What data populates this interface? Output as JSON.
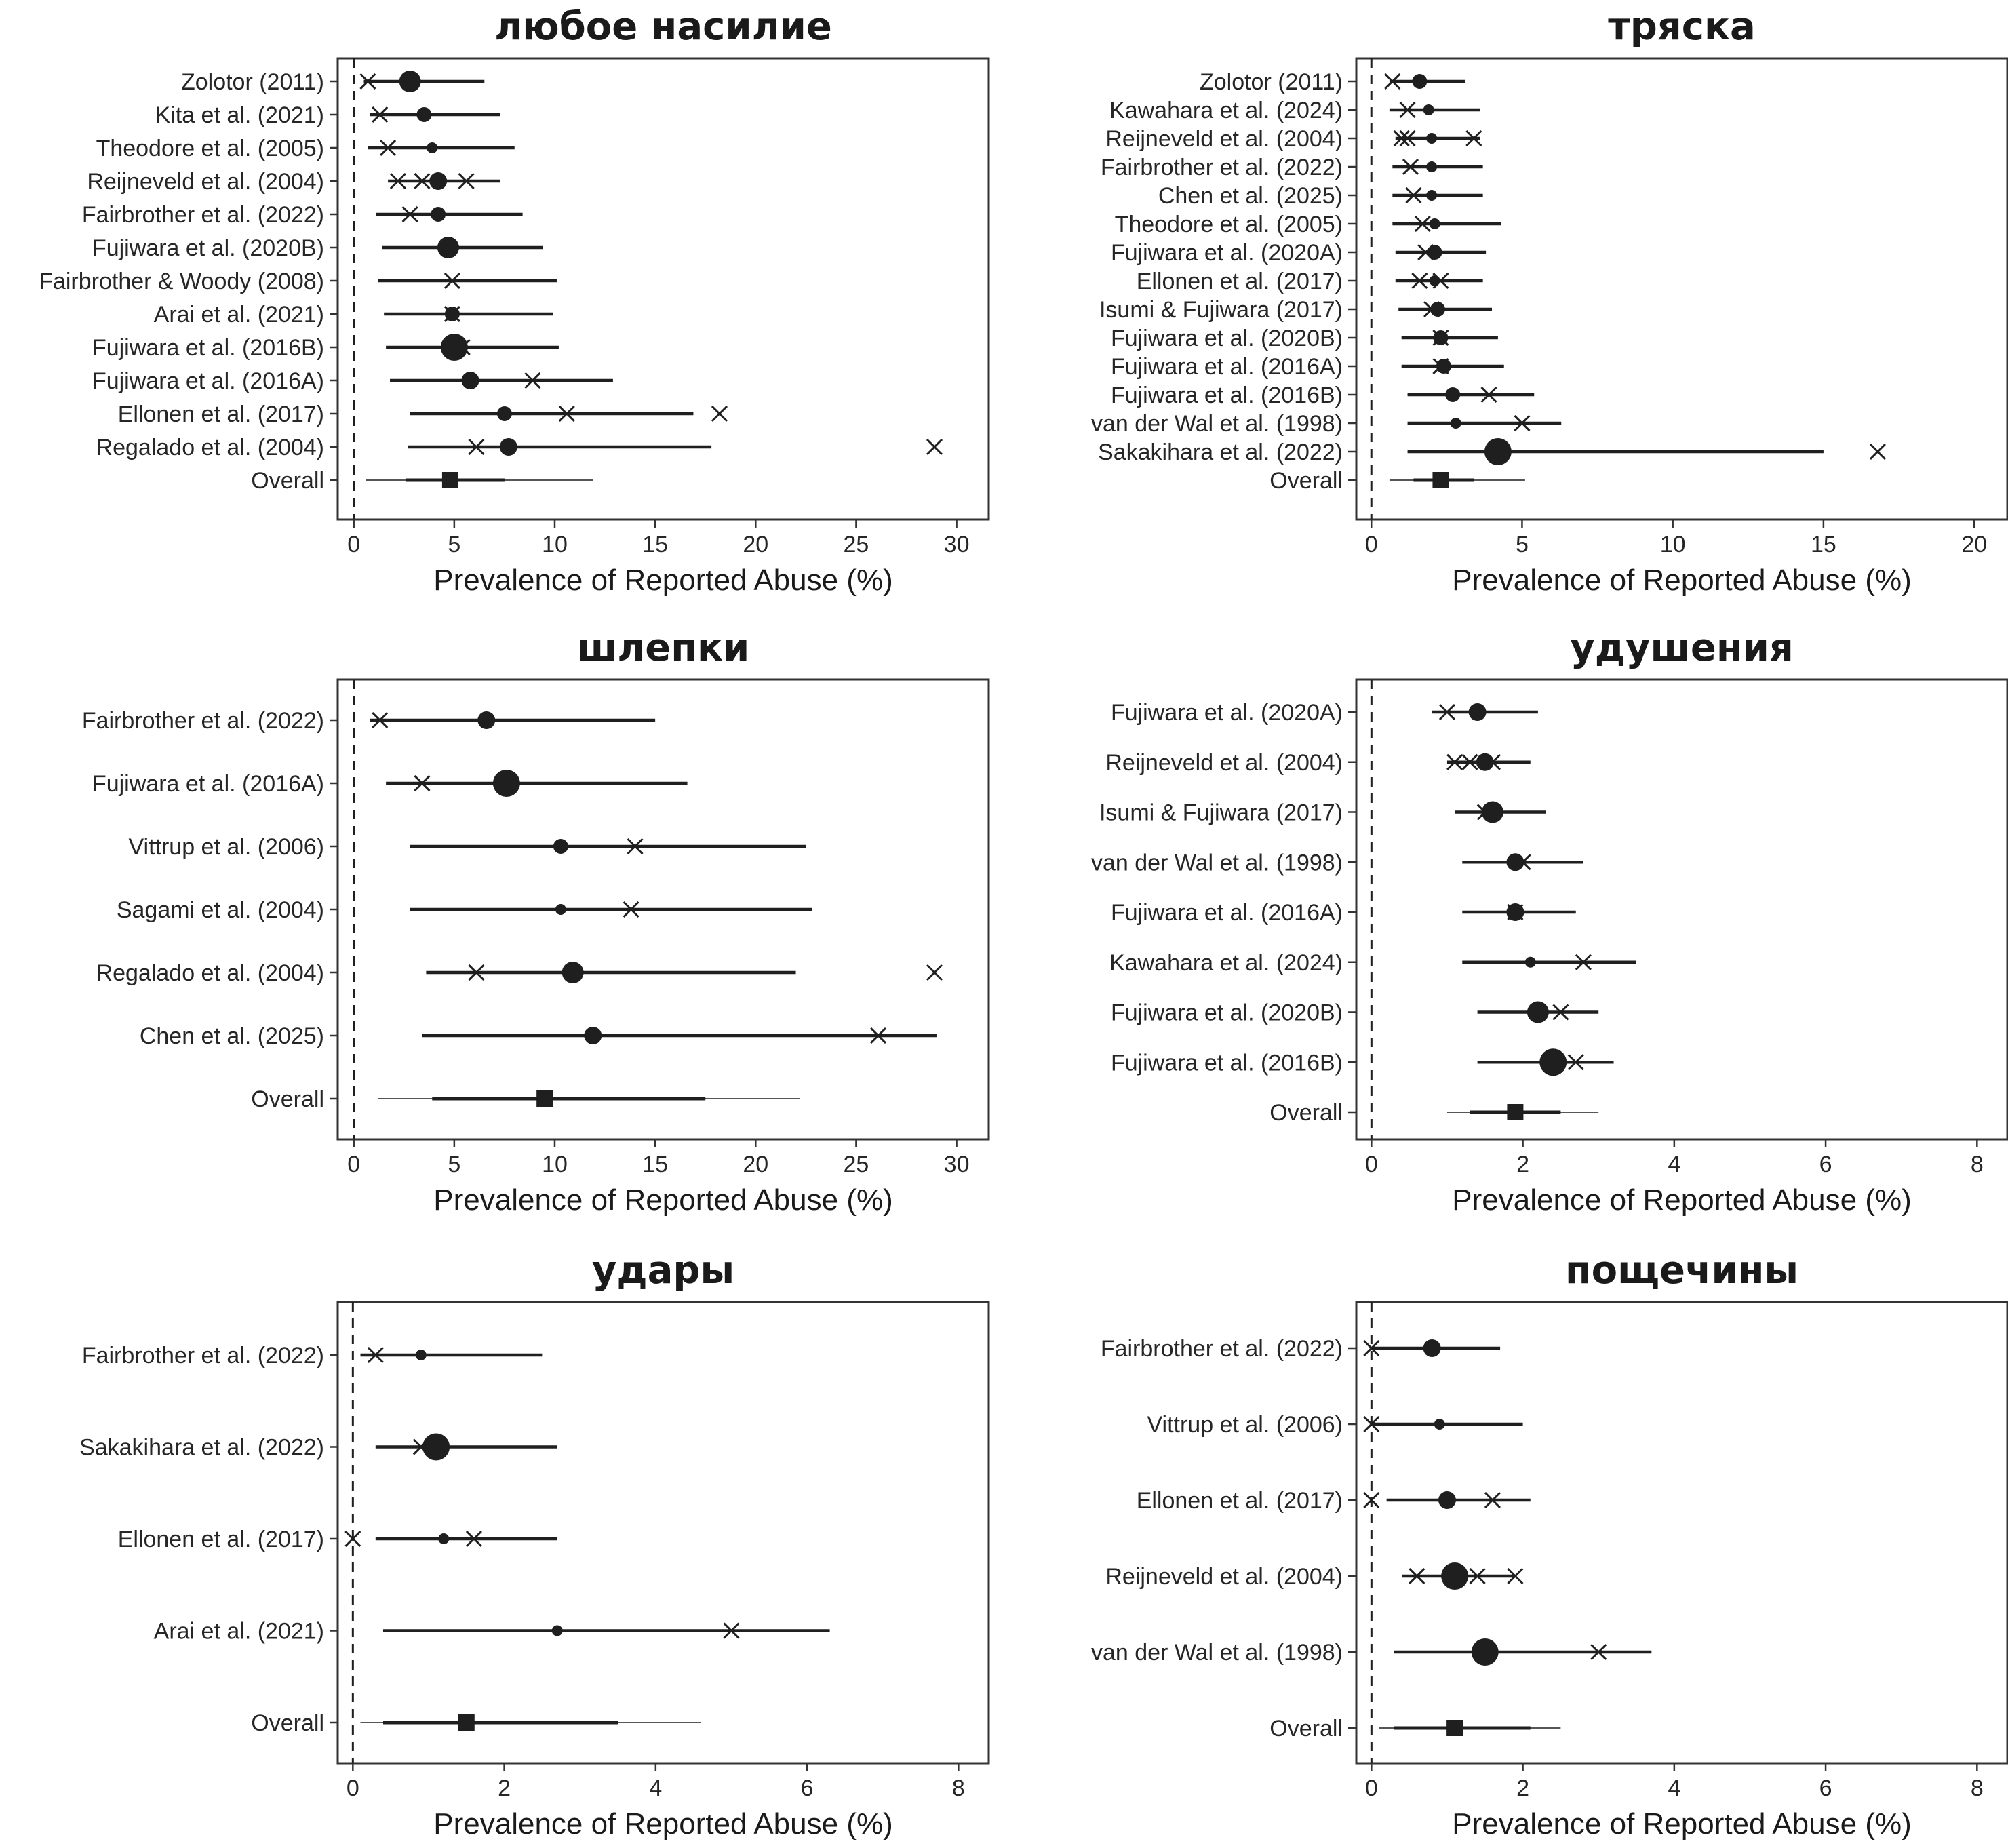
{
  "chart_data": [
    {
      "type": "forest",
      "title": "любое насилие",
      "xlabel": "Prevalence of Reported Abuse (%)",
      "xlim": [
        -0.8,
        31.6
      ],
      "xticks": [
        0,
        5,
        10,
        15,
        20,
        25,
        30
      ],
      "reference_line": 0,
      "studies": [
        {
          "label": "Zolotor (2011)",
          "estimate": 2.8,
          "lower": 0.5,
          "upper": 6.5,
          "weight": "large",
          "cross": [
            0.7
          ]
        },
        {
          "label": "Kita et al. (2021)",
          "estimate": 3.5,
          "lower": 0.8,
          "upper": 7.3,
          "weight": "small",
          "cross": [
            1.3
          ]
        },
        {
          "label": "Theodore et al. (2005)",
          "estimate": 3.9,
          "lower": 0.7,
          "upper": 8.0,
          "weight": "tiny",
          "cross": [
            1.7
          ]
        },
        {
          "label": "Reijneveld et al. (2004)",
          "estimate": 4.2,
          "lower": 1.7,
          "upper": 7.3,
          "weight": "medium",
          "cross": [
            2.2,
            3.4,
            5.6
          ]
        },
        {
          "label": "Fairbrother et al. (2022)",
          "estimate": 4.2,
          "lower": 1.1,
          "upper": 8.4,
          "weight": "small",
          "cross": [
            2.8
          ]
        },
        {
          "label": "Fujiwara et al. (2020B)",
          "estimate": 4.7,
          "lower": 1.4,
          "upper": 9.4,
          "weight": "large",
          "cross": [
            4.7
          ]
        },
        {
          "label": "Fairbrother & Woody (2008)",
          "estimate": 4.9,
          "lower": 1.2,
          "upper": 10.1,
          "weight": "none",
          "cross": [
            4.9
          ]
        },
        {
          "label": "Arai et al. (2021)",
          "estimate": 4.9,
          "lower": 1.5,
          "upper": 9.9,
          "weight": "small",
          "cross": [
            4.9
          ]
        },
        {
          "label": "Fujiwara et al. (2016B)",
          "estimate": 5.0,
          "lower": 1.6,
          "upper": 10.2,
          "weight": "xlarge",
          "cross": [
            5.4
          ]
        },
        {
          "label": "Fujiwara et al. (2016A)",
          "estimate": 5.8,
          "lower": 1.8,
          "upper": 12.9,
          "weight": "medium",
          "cross": [
            8.9
          ]
        },
        {
          "label": "Ellonen et al. (2017)",
          "estimate": 7.5,
          "lower": 2.8,
          "upper": 16.9,
          "weight": "small",
          "cross": [
            10.6,
            18.2
          ]
        },
        {
          "label": "Regalado et al. (2004)",
          "estimate": 7.7,
          "lower": 2.7,
          "upper": 17.8,
          "weight": "medium",
          "cross": [
            6.1,
            28.9
          ]
        }
      ],
      "overall": {
        "label": "Overall",
        "estimate": 4.8,
        "ci_lower": 2.6,
        "ci_upper": 7.5,
        "pi_lower": 0.6,
        "pi_upper": 11.9
      }
    },
    {
      "type": "forest",
      "title": "тряска",
      "xlabel": "Prevalence of Reported Abuse (%)",
      "xlim": [
        -0.5,
        21.1
      ],
      "xticks": [
        0,
        5,
        10,
        15,
        20
      ],
      "reference_line": 0,
      "studies": [
        {
          "label": "Zolotor (2011)",
          "estimate": 1.6,
          "lower": 0.6,
          "upper": 3.1,
          "weight": "small",
          "cross": [
            0.7
          ]
        },
        {
          "label": "Kawahara et al. (2024)",
          "estimate": 1.9,
          "lower": 0.6,
          "upper": 3.6,
          "weight": "tiny",
          "cross": [
            1.2
          ]
        },
        {
          "label": "Reijneveld et al. (2004)",
          "estimate": 2.0,
          "lower": 0.8,
          "upper": 3.6,
          "weight": "tiny",
          "cross": [
            1.0,
            1.2,
            3.4
          ]
        },
        {
          "label": "Fairbrother et al. (2022)",
          "estimate": 2.0,
          "lower": 0.7,
          "upper": 3.7,
          "weight": "tiny",
          "cross": [
            1.3
          ]
        },
        {
          "label": "Chen et al. (2025)",
          "estimate": 2.0,
          "lower": 0.7,
          "upper": 3.7,
          "weight": "tiny",
          "cross": [
            1.4
          ]
        },
        {
          "label": "Theodore et al. (2005)",
          "estimate": 2.1,
          "lower": 0.7,
          "upper": 4.3,
          "weight": "tiny",
          "cross": [
            1.7
          ]
        },
        {
          "label": "Fujiwara et al. (2020A)",
          "estimate": 2.1,
          "lower": 0.8,
          "upper": 3.8,
          "weight": "small",
          "cross": [
            1.8
          ]
        },
        {
          "label": "Ellonen et al. (2017)",
          "estimate": 2.1,
          "lower": 0.8,
          "upper": 3.7,
          "weight": "tiny",
          "cross": [
            1.6,
            2.3
          ]
        },
        {
          "label": "Isumi & Fujiwara (2017)",
          "estimate": 2.2,
          "lower": 0.9,
          "upper": 4.0,
          "weight": "small",
          "cross": [
            2.0
          ]
        },
        {
          "label": "Fujiwara et al. (2020B)",
          "estimate": 2.3,
          "lower": 1.0,
          "upper": 4.2,
          "weight": "small",
          "cross": [
            2.3
          ]
        },
        {
          "label": "Fujiwara et al. (2016A)",
          "estimate": 2.4,
          "lower": 1.0,
          "upper": 4.4,
          "weight": "small",
          "cross": [
            2.3
          ]
        },
        {
          "label": "Fujiwara et al. (2016B)",
          "estimate": 2.7,
          "lower": 1.2,
          "upper": 5.4,
          "weight": "small",
          "cross": [
            3.9
          ]
        },
        {
          "label": "van der Wal et al. (1998)",
          "estimate": 2.8,
          "lower": 1.2,
          "upper": 6.3,
          "weight": "tiny",
          "cross": [
            5.0
          ]
        },
        {
          "label": "Sakakihara et al. (2022)",
          "estimate": 4.2,
          "lower": 1.2,
          "upper": 15.0,
          "weight": "xlarge",
          "cross": [
            16.8
          ]
        }
      ],
      "overall": {
        "label": "Overall",
        "estimate": 2.3,
        "ci_lower": 1.4,
        "ci_upper": 3.4,
        "pi_lower": 0.6,
        "pi_upper": 5.1
      }
    },
    {
      "type": "forest",
      "title": "шлепки",
      "xlabel": "Prevalence of Reported Abuse (%)",
      "xlim": [
        -0.8,
        31.6
      ],
      "xticks": [
        0,
        5,
        10,
        15,
        20,
        25,
        30
      ],
      "reference_line": 0,
      "studies": [
        {
          "label": "Fairbrother et al. (2022)",
          "estimate": 6.6,
          "lower": 0.8,
          "upper": 15.0,
          "weight": "medium",
          "cross": [
            1.3
          ]
        },
        {
          "label": "Fujiwara et al. (2016A)",
          "estimate": 7.6,
          "lower": 1.6,
          "upper": 16.6,
          "weight": "xlarge",
          "cross": [
            3.4
          ]
        },
        {
          "label": "Vittrup et al. (2006)",
          "estimate": 10.3,
          "lower": 2.8,
          "upper": 22.5,
          "weight": "small",
          "cross": [
            14.0
          ]
        },
        {
          "label": "Sagami et al. (2004)",
          "estimate": 10.3,
          "lower": 2.8,
          "upper": 22.8,
          "weight": "tiny",
          "cross": [
            13.8
          ]
        },
        {
          "label": "Regalado et al. (2004)",
          "estimate": 10.9,
          "lower": 3.6,
          "upper": 22.0,
          "weight": "large",
          "cross": [
            6.1,
            28.9
          ]
        },
        {
          "label": "Chen et al. (2025)",
          "estimate": 11.9,
          "lower": 3.4,
          "upper": 29.0,
          "weight": "medium",
          "cross": [
            26.1
          ]
        }
      ],
      "overall": {
        "label": "Overall",
        "estimate": 9.5,
        "ci_lower": 3.9,
        "ci_upper": 17.5,
        "pi_lower": 1.2,
        "pi_upper": 22.2
      }
    },
    {
      "type": "forest",
      "title": "удушения",
      "xlabel": "Prevalence of Reported Abuse (%)",
      "xlim": [
        -0.2,
        8.4
      ],
      "xticks": [
        0,
        2,
        4,
        6,
        8
      ],
      "reference_line": 0,
      "studies": [
        {
          "label": "Fujiwara et al. (2020A)",
          "estimate": 1.4,
          "lower": 0.8,
          "upper": 2.2,
          "weight": "medium",
          "cross": [
            1.0
          ]
        },
        {
          "label": "Reijneveld et al. (2004)",
          "estimate": 1.5,
          "lower": 1.0,
          "upper": 2.1,
          "weight": "medium",
          "cross": [
            1.1,
            1.3,
            1.6
          ]
        },
        {
          "label": "Isumi & Fujiwara (2017)",
          "estimate": 1.6,
          "lower": 1.1,
          "upper": 2.3,
          "weight": "large",
          "cross": [
            1.5
          ]
        },
        {
          "label": "van der Wal et al. (1998)",
          "estimate": 1.9,
          "lower": 1.2,
          "upper": 2.8,
          "weight": "medium",
          "cross": [
            2.0
          ]
        },
        {
          "label": "Fujiwara et al. (2016A)",
          "estimate": 1.9,
          "lower": 1.2,
          "upper": 2.7,
          "weight": "medium",
          "cross": [
            1.9
          ]
        },
        {
          "label": "Kawahara et al. (2024)",
          "estimate": 2.1,
          "lower": 1.2,
          "upper": 3.5,
          "weight": "tiny",
          "cross": [
            2.8
          ]
        },
        {
          "label": "Fujiwara et al. (2020B)",
          "estimate": 2.2,
          "lower": 1.4,
          "upper": 3.0,
          "weight": "large",
          "cross": [
            2.5
          ]
        },
        {
          "label": "Fujiwara et al. (2016B)",
          "estimate": 2.4,
          "lower": 1.4,
          "upper": 3.2,
          "weight": "xlarge",
          "cross": [
            2.7
          ]
        }
      ],
      "overall": {
        "label": "Overall",
        "estimate": 1.9,
        "ci_lower": 1.3,
        "ci_upper": 2.5,
        "pi_lower": 1.0,
        "pi_upper": 3.0
      }
    },
    {
      "type": "forest",
      "title": "удары",
      "xlabel": "Prevalence of Reported Abuse (%)",
      "xlim": [
        -0.2,
        8.4
      ],
      "xticks": [
        0,
        2,
        4,
        6,
        8
      ],
      "reference_line": 0,
      "studies": [
        {
          "label": "Fairbrother et al. (2022)",
          "estimate": 0.9,
          "lower": 0.1,
          "upper": 2.5,
          "weight": "tiny",
          "cross": [
            0.3
          ]
        },
        {
          "label": "Sakakihara et al. (2022)",
          "estimate": 1.1,
          "lower": 0.3,
          "upper": 2.7,
          "weight": "xlarge",
          "cross": [
            0.9
          ]
        },
        {
          "label": "Ellonen et al. (2017)",
          "estimate": 1.2,
          "lower": 0.3,
          "upper": 2.7,
          "weight": "tiny",
          "cross": [
            0.0,
            1.6
          ]
        },
        {
          "label": "Arai et al. (2021)",
          "estimate": 2.7,
          "lower": 0.4,
          "upper": 6.3,
          "weight": "tiny",
          "cross": [
            5.0
          ]
        }
      ],
      "overall": {
        "label": "Overall",
        "estimate": 1.5,
        "ci_lower": 0.4,
        "ci_upper": 3.5,
        "pi_lower": 0.1,
        "pi_upper": 4.6
      }
    },
    {
      "type": "forest",
      "title": "пощечины",
      "xlabel": "Prevalence of Reported Abuse (%)",
      "xlim": [
        -0.2,
        8.4
      ],
      "xticks": [
        0,
        2,
        4,
        6,
        8
      ],
      "reference_line": 0,
      "studies": [
        {
          "label": "Fairbrother et al. (2022)",
          "estimate": 0.8,
          "lower": 0.0,
          "upper": 1.7,
          "weight": "medium",
          "cross": [
            0.0
          ]
        },
        {
          "label": "Vittrup et al. (2006)",
          "estimate": 0.9,
          "lower": 0.0,
          "upper": 2.0,
          "weight": "tiny",
          "cross": [
            0.0
          ]
        },
        {
          "label": "Ellonen et al. (2017)",
          "estimate": 1.0,
          "lower": 0.2,
          "upper": 2.1,
          "weight": "medium",
          "cross": [
            0.0,
            1.6
          ]
        },
        {
          "label": "Reijneveld et al. (2004)",
          "estimate": 1.1,
          "lower": 0.4,
          "upper": 1.9,
          "weight": "xlarge",
          "cross": [
            0.6,
            1.4,
            1.9
          ]
        },
        {
          "label": "van der Wal et al. (1998)",
          "estimate": 1.5,
          "lower": 0.3,
          "upper": 3.7,
          "weight": "xlarge",
          "cross": [
            3.0
          ]
        }
      ],
      "overall": {
        "label": "Overall",
        "estimate": 1.1,
        "ci_lower": 0.3,
        "ci_upper": 2.1,
        "pi_lower": 0.1,
        "pi_upper": 2.5
      }
    }
  ]
}
